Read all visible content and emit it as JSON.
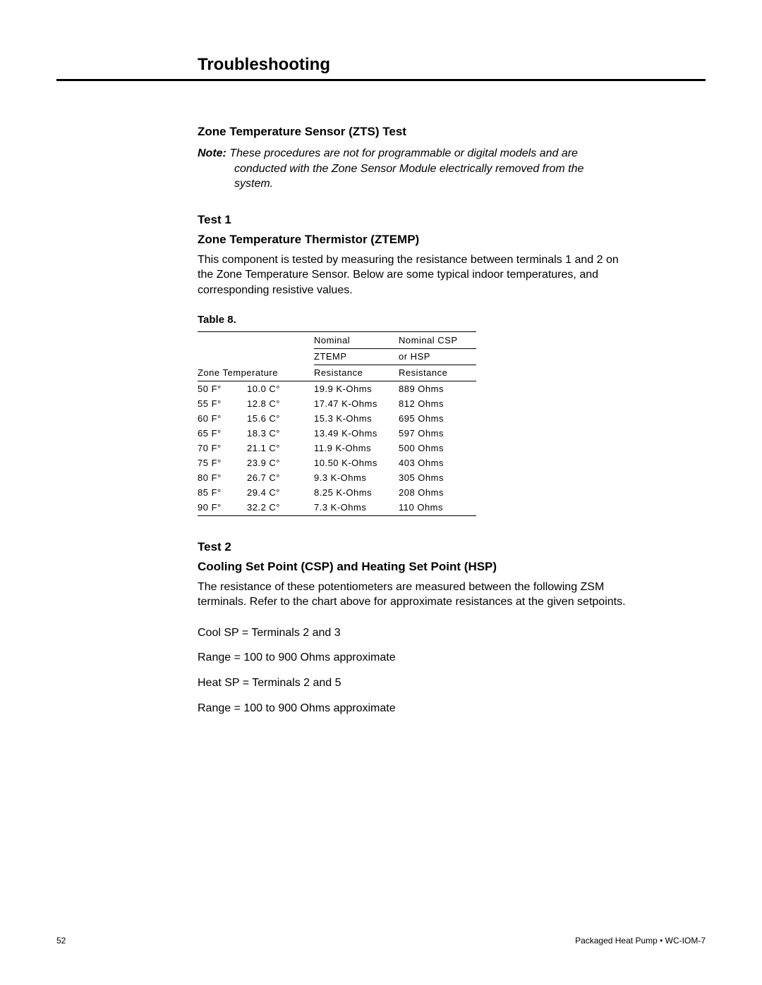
{
  "chapter_title": "Troubleshooting",
  "zts": {
    "heading": "Zone Temperature Sensor (ZTS) Test",
    "note_label": "Note:",
    "note_line1": "These procedures are not for programmable or digital models and are",
    "note_line2": "conducted with the Zone Sensor Module electrically removed from the",
    "note_line3": "system."
  },
  "test1": {
    "heading_a": "Test 1",
    "heading_b": "Zone Temperature Thermistor (ZTEMP)",
    "para": "This component is tested by measuring the resistance between terminals 1 and 2 on the Zone Temperature Sensor. Below are some typical indoor temperatures, and corresponding resistive values."
  },
  "table": {
    "caption": "Table 8.",
    "head": {
      "col1_span": "Zone Temperature",
      "col2a": "Nominal",
      "col2b": "ZTEMP",
      "col2c": "Resistance",
      "col3a": "Nominal CSP",
      "col3b": "or HSP",
      "col3c": "Resistance"
    },
    "rows": [
      [
        "50 F°",
        "10.0 C°",
        "19.9 K-Ohms",
        "889 Ohms"
      ],
      [
        "55 F°",
        "12.8 C°",
        "17.47 K-Ohms",
        "812 Ohms"
      ],
      [
        "60 F°",
        "15.6 C°",
        "15.3 K-Ohms",
        "695 Ohms"
      ],
      [
        "65 F°",
        "18.3 C°",
        "13.49 K-Ohms",
        "597 Ohms"
      ],
      [
        "70 F°",
        "21.1 C°",
        "11.9 K-Ohms",
        "500 Ohms"
      ],
      [
        "75 F°",
        "23.9 C°",
        "10.50 K-Ohms",
        "403 Ohms"
      ],
      [
        "80 F°",
        "26.7 C°",
        "9.3 K-Ohms",
        "305 Ohms"
      ],
      [
        "85 F°",
        "29.4 C°",
        "8.25 K-Ohms",
        "208 Ohms"
      ],
      [
        "90 F°",
        "32.2 C°",
        "7.3 K-Ohms",
        "110 Ohms"
      ]
    ]
  },
  "test2": {
    "heading_a": "Test 2",
    "heading_b": "Cooling Set Point (CSP) and Heating Set Point (HSP)",
    "para": "The resistance of these potentiometers are measured between the following ZSM terminals. Refer to the chart above for approximate resistances at the given setpoints.",
    "line1": "Cool SP = Terminals 2 and 3",
    "line2": "Range = 100 to 900 Ohms approximate",
    "line3": "Heat SP = Terminals 2 and 5",
    "line4": "Range = 100 to 900 Ohms approximate"
  },
  "footer": {
    "pageno": "52",
    "docid": "Packaged Heat Pump • WC-IOM-7"
  }
}
